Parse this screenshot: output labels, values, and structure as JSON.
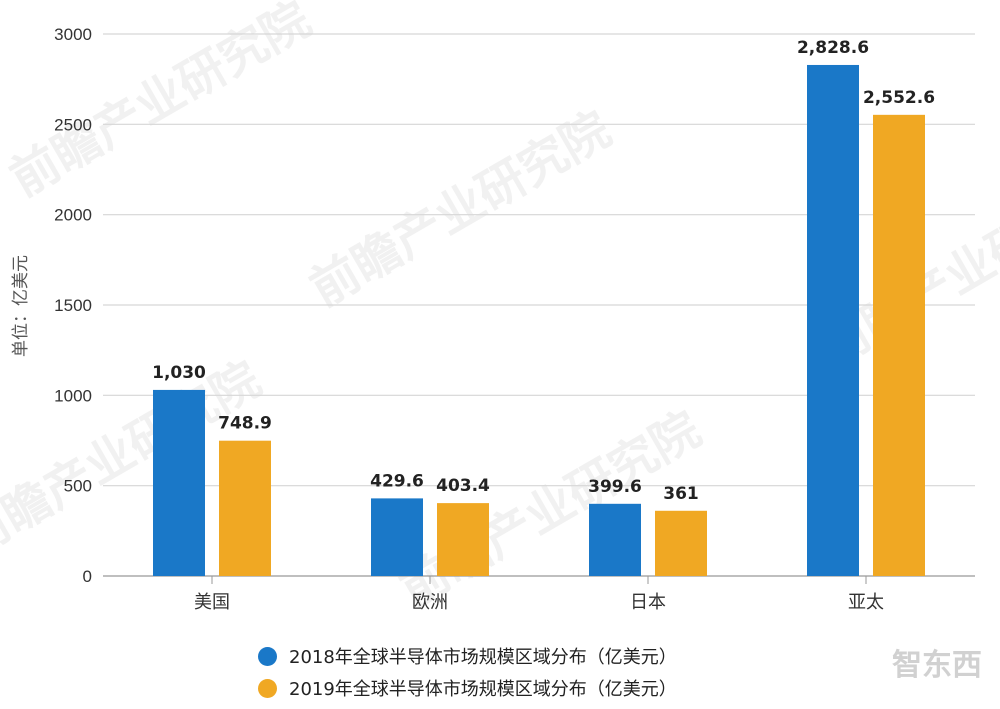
{
  "chart_data": {
    "type": "bar",
    "title": "",
    "xlabel": "",
    "ylabel": "单位：亿美元",
    "ylim": [
      0,
      3000
    ],
    "yticks": [
      0,
      500,
      1000,
      1500,
      2000,
      2500,
      3000
    ],
    "grid": true,
    "legend_position": "bottom",
    "categories": [
      "美国",
      "欧洲",
      "日本",
      "亚太"
    ],
    "series": [
      {
        "name": "2018年全球半导体市场规模区域分布（亿美元）",
        "color": "#1a78c8",
        "values": [
          1030,
          429.6,
          399.6,
          2828.6
        ],
        "labels": [
          "1,030",
          "429.6",
          "399.6",
          "2,828.6"
        ]
      },
      {
        "name": "2019年全球半导体市场规模区域分布（亿美元）",
        "color": "#f0a823",
        "values": [
          748.9,
          403.4,
          361,
          2552.6
        ],
        "labels": [
          "748.9",
          "403.4",
          "361",
          "2,552.6"
        ]
      }
    ]
  },
  "legend": {
    "items": [
      {
        "label": "2018年全球半导体市场规模区域分布（亿美元）",
        "color": "#1a78c8"
      },
      {
        "label": "2019年全球半导体市场规模区域分布（亿美元）",
        "color": "#f0a823"
      }
    ]
  },
  "watermark": {
    "text": "前瞻产业研究院",
    "logo": "智东西"
  }
}
